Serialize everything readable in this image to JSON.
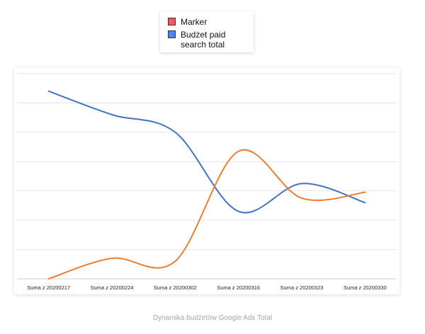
{
  "legend": {
    "items": [
      {
        "label": "Marker",
        "color": "#f05a5a"
      },
      {
        "label": "Budżet paid search total",
        "color": "#4f86f0"
      }
    ]
  },
  "caption": "Dynamika budżetów Google Ads Total",
  "chart_data": {
    "type": "line",
    "title": "",
    "xlabel": "",
    "ylabel": "",
    "categories": [
      "Suma z 20200217",
      "Suma z 20200224",
      "Suma z 20200302",
      "Suma z 20200316",
      "Suma z 20200323",
      "Suma z 20200330"
    ],
    "ylim": [
      0,
      7
    ],
    "grid": true,
    "series": [
      {
        "name": "Budżet paid search total",
        "color": "#4472c4",
        "values": [
          6.4,
          5.6,
          5.0,
          2.3,
          3.25,
          2.6
        ]
      },
      {
        "name": "Marker",
        "color": "#ed7d31",
        "values": [
          0.0,
          0.7,
          0.6,
          4.35,
          2.75,
          2.95
        ]
      }
    ]
  }
}
